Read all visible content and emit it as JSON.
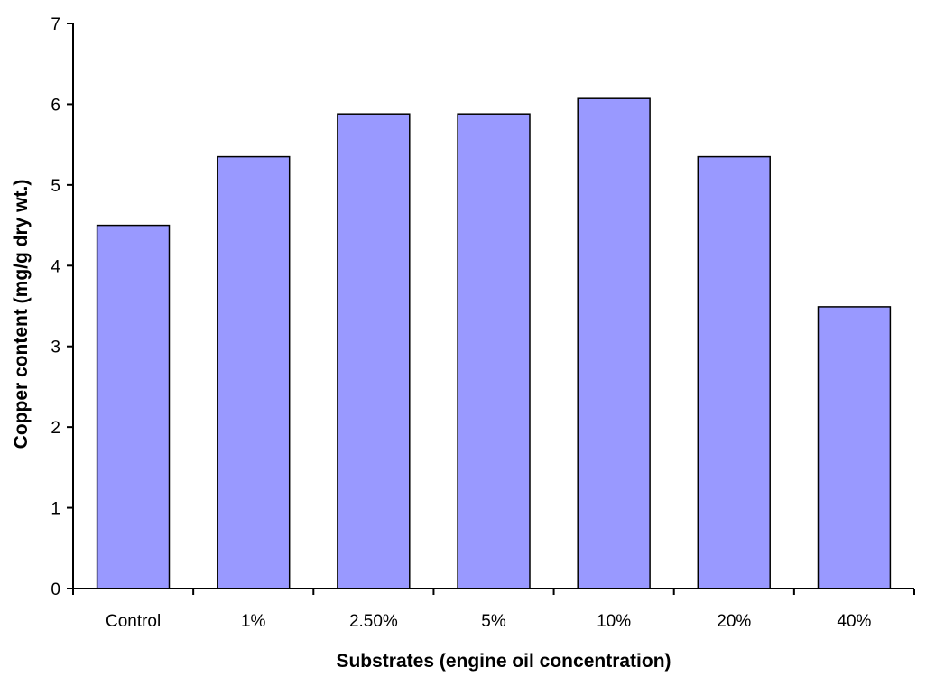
{
  "chart_data": {
    "type": "bar",
    "title": "",
    "xlabel": "Substrates (engine oil concentration)",
    "ylabel": "Copper content (mg/g dry wt.)",
    "categories": [
      "Control",
      "1%",
      "2.50%",
      "5%",
      "10%",
      "20%",
      "40%"
    ],
    "values": [
      4.5,
      5.35,
      5.88,
      5.88,
      6.07,
      5.35,
      3.49
    ],
    "ylim": [
      0,
      7
    ],
    "yticks": [
      "0",
      "1",
      "2",
      "3",
      "4",
      "5",
      "6",
      "7"
    ],
    "grid": false,
    "legend": "none",
    "colors": {
      "bar_fill": "#9999ff",
      "bar_stroke": "#000000",
      "axis": "#000000",
      "background": "#ffffff"
    }
  }
}
